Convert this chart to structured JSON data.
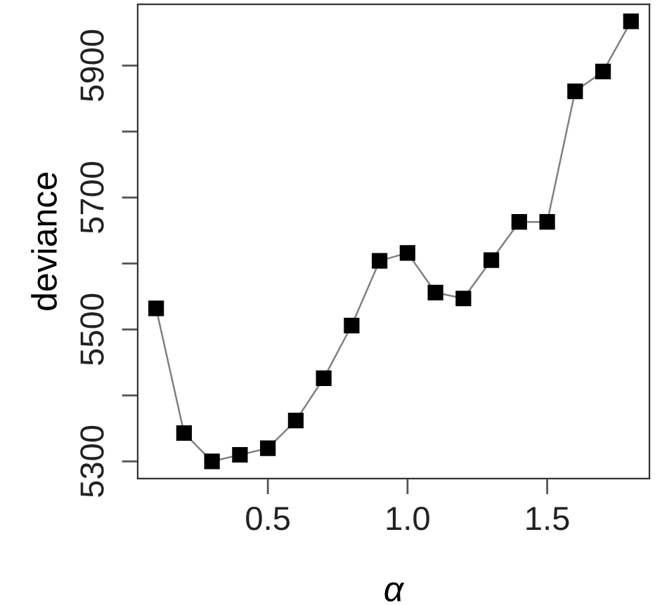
{
  "chart_data": {
    "type": "line",
    "xlabel": "α",
    "ylabel": "deviance",
    "x": [
      0.1,
      0.2,
      0.3,
      0.4,
      0.5,
      0.6,
      0.7,
      0.8,
      0.9,
      1.0,
      1.1,
      1.2,
      1.3,
      1.4,
      1.5,
      1.6,
      1.7,
      1.8
    ],
    "series": [
      {
        "color": "#808080",
        "values": [
          5532,
          5343,
          5300,
          5310,
          5320,
          5362,
          5426,
          5506,
          5604,
          5616,
          5556,
          5547,
          5605,
          5663,
          5663,
          5861,
          5891,
          5967
        ]
      }
    ],
    "marker": "square",
    "line_style": "solid",
    "xlim": [
      0.034,
      1.866
    ],
    "xticks": [
      0.5,
      {
        "value": 1,
        "label": "1.0"
      },
      1.5
    ],
    "ylim": [
      5274,
      5993
    ],
    "yticks": [
      5300,
      {
        "value": 5400,
        "label": null
      },
      5500,
      {
        "value": 5600,
        "label": null
      },
      5700,
      {
        "value": 5800,
        "label": null
      },
      5900
    ],
    "grid": false,
    "legend": false
  }
}
